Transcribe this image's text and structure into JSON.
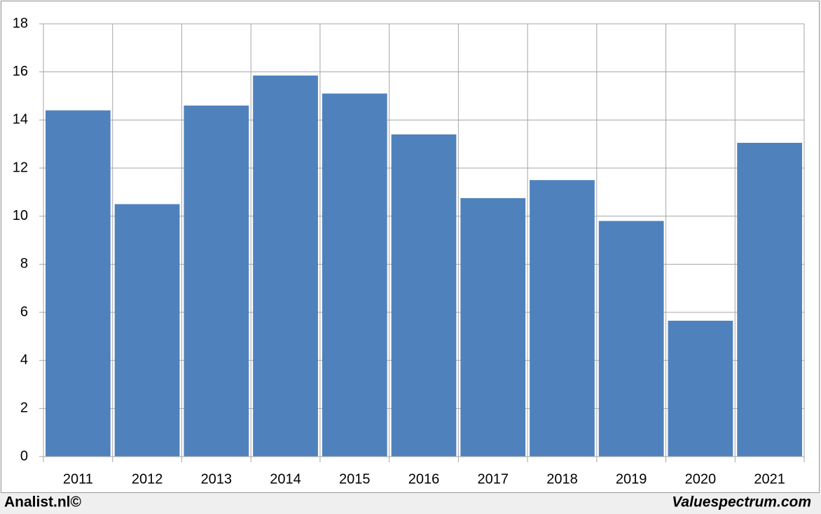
{
  "chart_data": {
    "type": "bar",
    "categories": [
      "2011",
      "2012",
      "2013",
      "2014",
      "2015",
      "2016",
      "2017",
      "2018",
      "2019",
      "2020",
      "2021"
    ],
    "values": [
      14.4,
      10.5,
      14.6,
      15.85,
      15.1,
      13.4,
      10.75,
      11.5,
      9.8,
      5.65,
      13.05
    ],
    "color": "#4f81bd",
    "ylim": [
      0,
      18
    ],
    "yticks": [
      0,
      2,
      4,
      6,
      8,
      10,
      12,
      14,
      16,
      18
    ],
    "grid": true,
    "credits": [
      "Analist.nl©",
      "Valuespectrum.com"
    ]
  }
}
